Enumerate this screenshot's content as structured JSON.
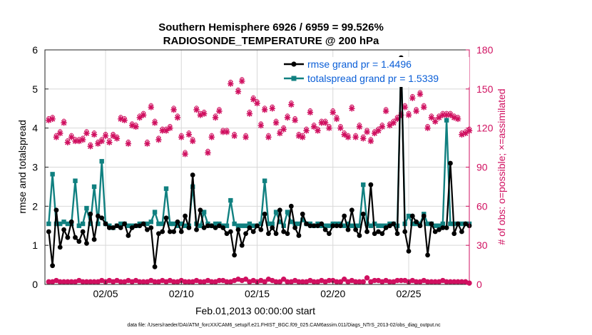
{
  "chart_data": {
    "type": "line",
    "title_line1": "Southern Hemisphere 6926 / 6959 = 99.526%",
    "title_line2": "RADIOSONDE_TEMPERATURE @ 200 hPa",
    "xlabel": "Feb.01,2013 00:00:00 start",
    "ylabel_left": "rmse and totalspread",
    "ylabel_right": "# of obs: o=possible; ×=assimilated",
    "footer": "data file: /Users/raeder/DAI/ATM_forcXX/CAM6_setup/f.e21.FHIST_BGC.f09_025.CAM6assim.011/Diags_NTrS_2013-02/obs_diag_output.nc",
    "xlim": [
      1,
      29
    ],
    "ylim_left": [
      0,
      6
    ],
    "ylim_right": [
      0,
      180
    ],
    "x_ticks": [
      "02/05",
      "02/10",
      "02/15",
      "02/20",
      "02/25"
    ],
    "y_ticks_left": [
      "0",
      "1",
      "2",
      "3",
      "4",
      "5",
      "6"
    ],
    "y_ticks_right": [
      "0",
      "30",
      "60",
      "90",
      "120",
      "150",
      "180"
    ],
    "colors": {
      "rmse": "#000000",
      "spread": "#108080",
      "obs": "#d01060",
      "legend_text": "#0a5ed7"
    },
    "legend": {
      "rmse_label": "rmse grand pr = 1.4496",
      "spread_label": "totalspread grand pr = 1.5339"
    },
    "x": [
      1.25,
      1.5,
      1.75,
      2,
      2.25,
      2.5,
      2.75,
      3,
      3.25,
      3.5,
      3.75,
      4,
      4.25,
      4.5,
      4.75,
      5,
      5.25,
      5.5,
      5.75,
      6,
      6.25,
      6.5,
      6.75,
      7,
      7.25,
      7.5,
      7.75,
      8,
      8.25,
      8.5,
      8.75,
      9,
      9.25,
      9.5,
      9.75,
      10,
      10.25,
      10.5,
      10.75,
      11,
      11.25,
      11.5,
      11.75,
      12,
      12.25,
      12.5,
      12.75,
      13,
      13.25,
      13.5,
      13.75,
      14,
      14.25,
      14.5,
      14.75,
      15,
      15.25,
      15.5,
      15.75,
      16,
      16.25,
      16.5,
      16.75,
      17,
      17.25,
      17.5,
      17.75,
      18,
      18.25,
      18.5,
      18.75,
      19,
      19.25,
      19.5,
      19.75,
      20,
      20.25,
      20.5,
      20.75,
      21,
      21.25,
      21.5,
      21.75,
      22,
      22.25,
      22.5,
      22.75,
      23,
      23.25,
      23.5,
      23.75,
      24,
      24.25,
      24.5,
      24.75,
      25,
      25.25,
      25.5,
      25.75,
      26,
      26.25,
      26.5,
      26.75,
      27,
      27.25,
      27.5,
      27.75,
      28,
      28.25,
      28.5,
      28.75,
      29
    ],
    "rmse": [
      1.35,
      0.48,
      1.9,
      0.95,
      1.4,
      1.2,
      1.6,
      1.2,
      1.1,
      1.35,
      1.05,
      1.8,
      1.15,
      1.75,
      1.7,
      1.55,
      1.45,
      1.45,
      1.5,
      1.45,
      1.55,
      1.25,
      1.45,
      1.5,
      1.5,
      1.55,
      1.4,
      1.45,
      0.45,
      1.3,
      1.35,
      1.7,
      1.35,
      1.35,
      1.6,
      1.35,
      1.75,
      1.45,
      2.8,
      1.4,
      1.9,
      1.45,
      1.5,
      1.5,
      1.45,
      1.5,
      1.45,
      1.3,
      1.35,
      0.75,
      1.4,
      1.0,
      1.3,
      1.45,
      1.35,
      1.5,
      1.4,
      1.8,
      1.3,
      1.45,
      1.3,
      1.9,
      1.35,
      1.3,
      2.0,
      1.45,
      1.25,
      1.8,
      1.55,
      1.5,
      1.5,
      1.5,
      1.55,
      1.4,
      1.3,
      1.5,
      1.5,
      1.5,
      1.75,
      1.4,
      1.9,
      1.4,
      1.25,
      1.8,
      1.35,
      2.55,
      1.3,
      1.35,
      1.3,
      1.45,
      1.5,
      1.55,
      1.3,
      5.8,
      1.35,
      0.85,
      1.75,
      1.6,
      1.5,
      1.75,
      0.75,
      1.55,
      1.35,
      1.4,
      1.45,
      1.45,
      3.1,
      1.3,
      1.55,
      1.35,
      1.55,
      1.5,
      1.7
    ],
    "spread": [
      1.55,
      2.82,
      1.55,
      1.55,
      1.6,
      1.55,
      1.55,
      2.65,
      1.5,
      1.55,
      1.95,
      1.55,
      2.5,
      1.55,
      3.15,
      1.55,
      1.5,
      1.45,
      1.5,
      1.55,
      1.55,
      1.5,
      1.5,
      1.5,
      1.55,
      1.55,
      1.55,
      1.6,
      1.85,
      1.55,
      1.55,
      2.45,
      1.55,
      1.55,
      1.5,
      1.55,
      1.5,
      1.5,
      2.5,
      1.55,
      1.5,
      1.85,
      1.55,
      1.5,
      1.55,
      1.55,
      1.5,
      1.5,
      2.15,
      1.55,
      1.5,
      1.5,
      1.5,
      1.55,
      1.5,
      1.5,
      1.55,
      2.65,
      1.55,
      1.55,
      1.85,
      1.6,
      1.5,
      1.85,
      1.6,
      1.55,
      1.55,
      1.65,
      1.55,
      1.55,
      1.5,
      1.55,
      1.5,
      1.5,
      1.5,
      1.55,
      1.55,
      1.55,
      1.5,
      1.55,
      1.5,
      1.5,
      1.5,
      2.55,
      1.55,
      1.5,
      1.55,
      1.5,
      1.5,
      1.5,
      1.55,
      1.55,
      1.5,
      5.75,
      1.55,
      1.75,
      1.55,
      1.55,
      1.55,
      1.8,
      1.55,
      1.55,
      1.5,
      1.5,
      1.55,
      4.2,
      1.55,
      1.55,
      1.55,
      1.55,
      1.55,
      1.55,
      1.55
    ],
    "obs_possible_x": [
      1.25,
      1.5,
      1.75,
      2,
      2.25,
      2.5,
      2.75,
      3,
      3.25,
      3.5,
      3.75,
      4,
      4.25,
      4.5,
      4.75,
      5,
      5.25,
      5.5,
      5.75,
      6,
      6.25,
      6.5,
      6.75,
      7,
      7.25,
      7.5,
      7.75,
      8,
      8.25,
      8.5,
      8.75,
      9,
      9.25,
      9.5,
      9.75,
      10,
      10.25,
      10.5,
      10.75,
      11,
      11.25,
      11.5,
      11.75,
      12,
      12.25,
      12.5,
      12.75,
      13,
      13.25,
      13.5,
      13.75,
      14,
      14.25,
      14.5,
      14.75,
      15,
      15.25,
      15.5,
      15.75,
      16,
      16.25,
      16.5,
      16.75,
      17,
      17.25,
      17.5,
      17.75,
      18,
      18.25,
      18.5,
      18.75,
      19,
      19.25,
      19.5,
      19.75,
      20,
      20.25,
      20.5,
      20.75,
      21,
      21.25,
      21.5,
      21.75,
      22,
      22.25,
      22.5,
      22.75,
      23,
      23.25,
      23.5,
      23.75,
      24,
      24.25,
      24.5,
      24.75,
      25,
      25.25,
      25.5,
      25.75,
      26,
      26.25,
      26.5,
      26.75,
      27,
      27.25,
      27.5,
      27.75,
      28,
      28.25,
      28.5,
      28.75,
      29
    ],
    "obs_possible": [
      126,
      127,
      113,
      116,
      124,
      109,
      113,
      110,
      110,
      111,
      116,
      106,
      115,
      108,
      110,
      114,
      109,
      114,
      112,
      127,
      126,
      108,
      122,
      121,
      128,
      130,
      108,
      136,
      124,
      111,
      118,
      118,
      120,
      134,
      128,
      113,
      100,
      115,
      110,
      134,
      130,
      131,
      101,
      113,
      128,
      133,
      117,
      117,
      154,
      114,
      148,
      156,
      113,
      131,
      142,
      139,
      122,
      134,
      113,
      135,
      124,
      116,
      119,
      128,
      138,
      126,
      114,
      113,
      118,
      132,
      121,
      118,
      124,
      124,
      120,
      132,
      127,
      120,
      115,
      113,
      135,
      113,
      121,
      112,
      117,
      110,
      116,
      118,
      121,
      133,
      122,
      124,
      127,
      130,
      136,
      130,
      143,
      133,
      146,
      136,
      120,
      128,
      125,
      128,
      130,
      130,
      130,
      128,
      127,
      115,
      116,
      118,
      119,
      120,
      112,
      110,
      113
    ],
    "obs_possible_yshift": "none",
    "obs_assimilated": [
      126,
      127,
      113,
      116,
      124,
      109,
      113,
      110,
      110,
      111,
      116,
      106,
      115,
      108,
      110,
      114,
      109,
      114,
      112,
      127,
      126,
      108,
      122,
      121,
      128,
      130,
      108,
      136,
      124,
      111,
      118,
      118,
      120,
      134,
      128,
      113,
      100,
      115,
      110,
      134,
      130,
      131,
      101,
      113,
      128,
      133,
      117,
      117,
      154,
      114,
      148,
      156,
      113,
      131,
      142,
      139,
      122,
      134,
      113,
      135,
      124,
      116,
      119,
      128,
      138,
      126,
      114,
      113,
      118,
      132,
      121,
      118,
      124,
      124,
      120,
      132,
      127,
      120,
      115,
      113,
      135,
      113,
      121,
      112,
      117,
      110,
      116,
      118,
      121,
      133,
      122,
      124,
      127,
      130,
      136,
      130,
      143,
      133,
      146,
      136,
      120,
      128,
      125,
      128,
      130,
      130,
      130,
      128,
      127,
      115,
      116,
      118,
      119,
      120,
      112,
      110,
      113
    ],
    "obs_bottom_possible": [
      2,
      2,
      3,
      2,
      2,
      2,
      2,
      2,
      3,
      2,
      2,
      2,
      2,
      2,
      3,
      2,
      3,
      2,
      3,
      2,
      2,
      3,
      2,
      3,
      2,
      2,
      2,
      3,
      2,
      2,
      3,
      2,
      3,
      2,
      2,
      3,
      2,
      2,
      2,
      3,
      2,
      2,
      3,
      2,
      2,
      3,
      3,
      2,
      2,
      3,
      4,
      3,
      4,
      2,
      3,
      2,
      3,
      2,
      4,
      3,
      2,
      2,
      4,
      2,
      2,
      3,
      2,
      2,
      2,
      3,
      2,
      2,
      3,
      2,
      3,
      3,
      2,
      2,
      4,
      2,
      3,
      2,
      2,
      2,
      5,
      2,
      3,
      3,
      2,
      3,
      2,
      2,
      3,
      3,
      3,
      2,
      3,
      2,
      2,
      3,
      2,
      2,
      2,
      2,
      3,
      2,
      2,
      2,
      2,
      2,
      2,
      1,
      1,
      1,
      0
    ]
  }
}
